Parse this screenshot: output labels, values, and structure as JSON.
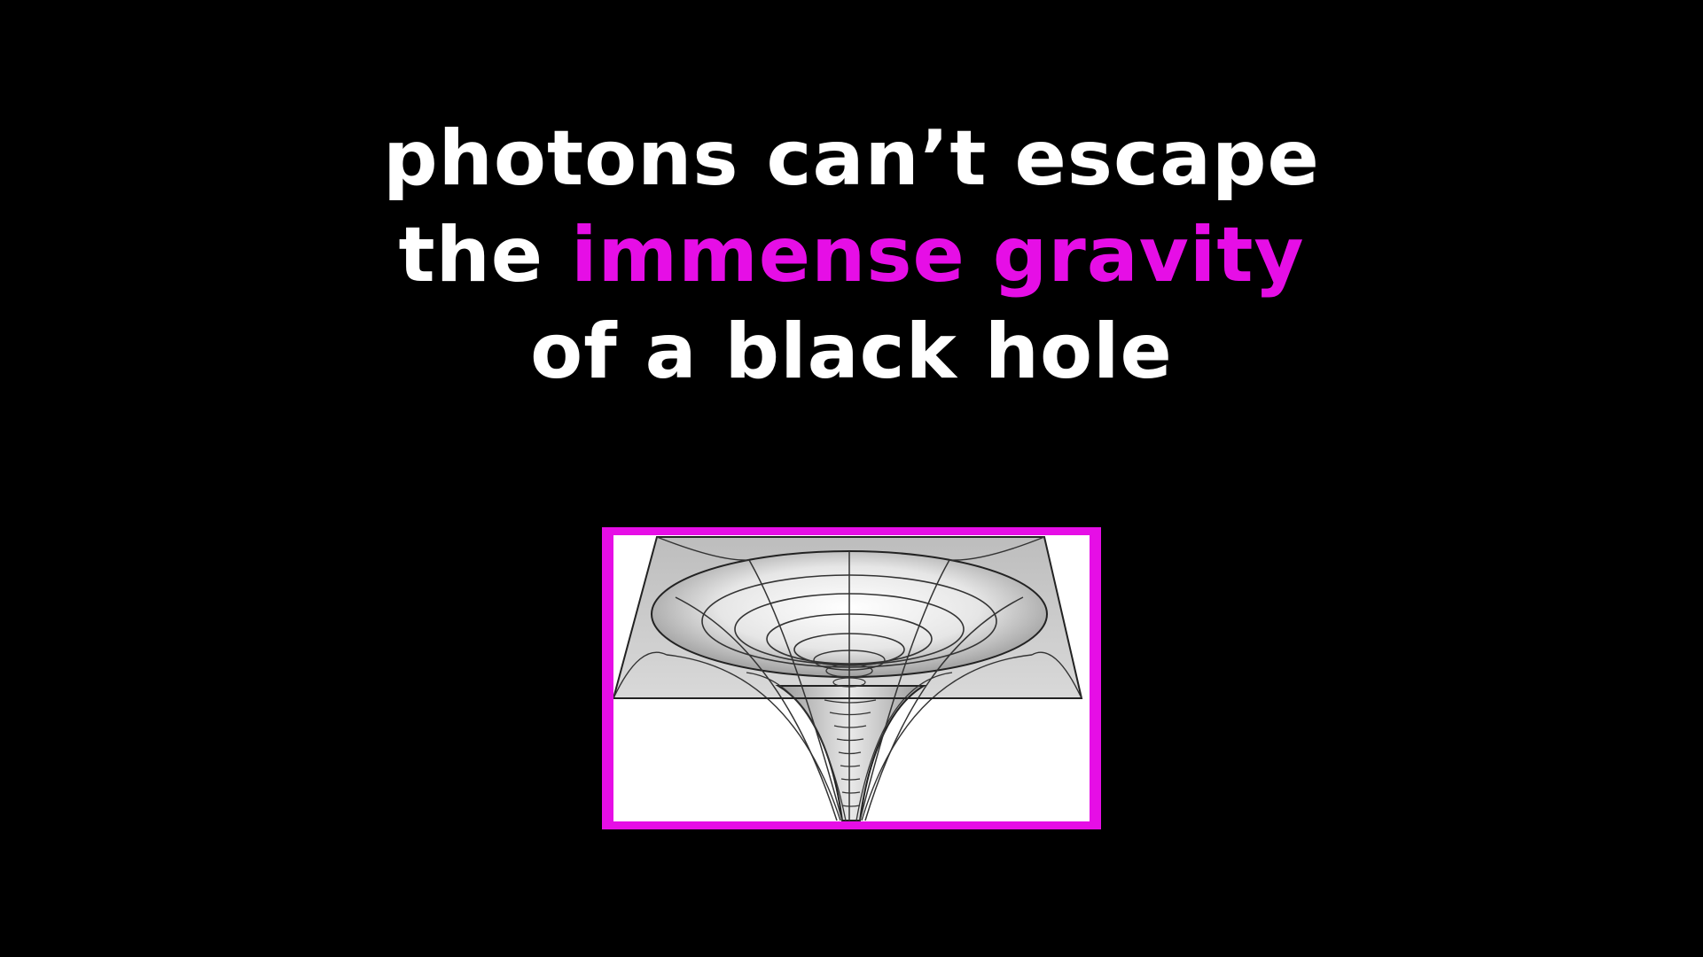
{
  "caption": {
    "line1": "photons can’t escape",
    "line2_prefix": "the ",
    "line2_highlight": "immense gravity",
    "line3": "of a black hole"
  },
  "colors": {
    "background": "#000000",
    "text": "#ffffff",
    "accent": "#e60ee6",
    "frame_fill": "#ffffff"
  },
  "figure": {
    "icon": "gravity-well-funnel-icon"
  }
}
